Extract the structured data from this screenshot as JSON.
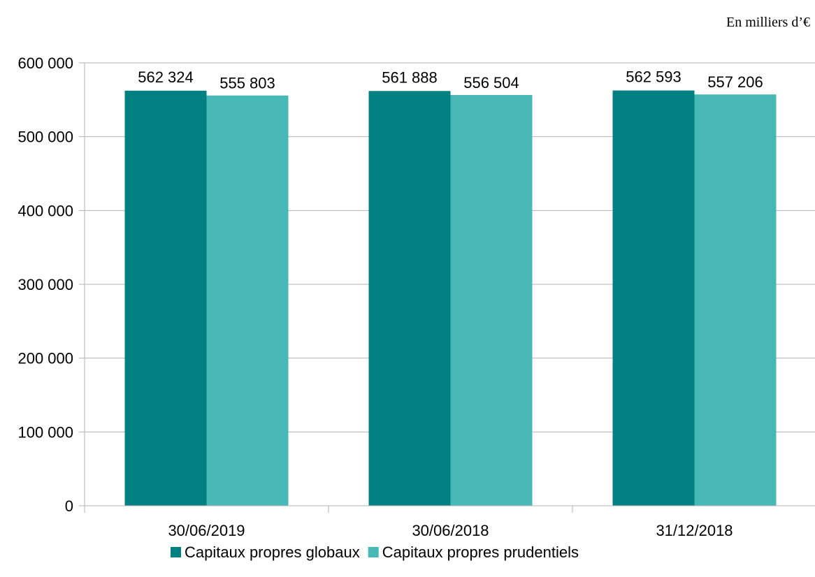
{
  "chart_data": {
    "type": "bar",
    "title": "",
    "unit_label": "En milliers d’€",
    "categories": [
      "30/06/2019",
      "30/06/2018",
      "31/12/2018"
    ],
    "series": [
      {
        "name": "Capitaux propres globaux",
        "color": "#008080",
        "values": [
          562324,
          561888,
          562593
        ]
      },
      {
        "name": "Capitaux propres prudentiels",
        "color": "#48B8B7",
        "values": [
          555803,
          556504,
          557206
        ]
      }
    ],
    "data_labels": [
      [
        "562 324",
        "561 888",
        "562 593"
      ],
      [
        "555 803",
        "556 504",
        "557 206"
      ]
    ],
    "ylim": [
      0,
      600000
    ],
    "yticks": [
      0,
      100000,
      200000,
      300000,
      400000,
      500000,
      600000
    ],
    "ytick_labels": [
      "0",
      "100 000",
      "200 000",
      "300 000",
      "400 000",
      "500 000",
      "600 000"
    ],
    "grid": true,
    "legend_position": "bottom"
  }
}
